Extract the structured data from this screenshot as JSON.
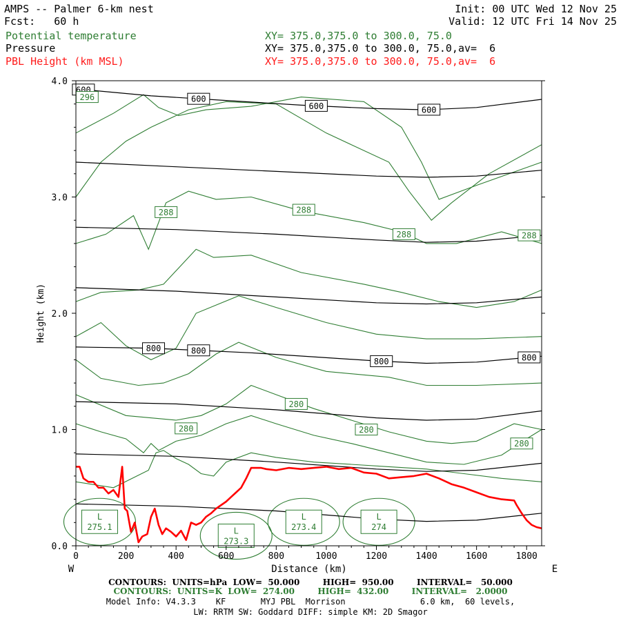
{
  "header": {
    "title": "AMPS -- Palmer 6-km nest",
    "fcst": "Fcst:   60 h",
    "init": "Init: 00 UTC Wed 12 Nov 25",
    "valid": "Valid: 12 UTC Fri 14 Nov 25",
    "field1_name": "Potential temperature",
    "field1_xy": "XY= 375.0,375.0 to 300.0, 75.0",
    "field2_name": "Pressure",
    "field2_xy": "XY= 375.0,375.0 to 300.0, 75.0,av=  6",
    "field3_name": "PBL Height (km MSL)",
    "field3_xy": "XY= 375.0,375.0 to 300.0, 75.0,av=  6"
  },
  "colors": {
    "theta": "#2e7d32",
    "pbl": "#ff0000",
    "pressure": "#000000"
  },
  "chart_data": {
    "type": "line",
    "xlabel": "Distance (km)",
    "ylabel": "Height (km)",
    "xlim": [
      0,
      1860
    ],
    "ylim": [
      0,
      4.0
    ],
    "xticks": [
      0,
      200,
      400,
      600,
      800,
      1000,
      1200,
      1400,
      1600,
      1800
    ],
    "yticks": [
      0.0,
      1.0,
      2.0,
      3.0,
      4.0
    ],
    "ytick_labels": [
      "0.0",
      "1.0",
      "2.0",
      "3.0",
      "4.0"
    ],
    "left_end": "W",
    "right_end": "E",
    "pressure_contours": [
      {
        "x": [
          0,
          300,
          600,
          900,
          1200,
          1400,
          1600,
          1860
        ],
        "y": [
          3.93,
          3.87,
          3.83,
          3.79,
          3.76,
          3.75,
          3.77,
          3.84
        ],
        "label": "600",
        "label_x": [
          30,
          490,
          960,
          1410
        ]
      },
      {
        "x": [
          0,
          400,
          800,
          1200,
          1400,
          1600,
          1860
        ],
        "y": [
          3.3,
          3.26,
          3.22,
          3.18,
          3.17,
          3.18,
          3.23
        ]
      },
      {
        "x": [
          0,
          400,
          800,
          1200,
          1400,
          1600,
          1860
        ],
        "y": [
          2.74,
          2.72,
          2.68,
          2.63,
          2.61,
          2.62,
          2.67
        ],
        "label_x": []
      },
      {
        "x": [
          0,
          400,
          800,
          1200,
          1400,
          1600,
          1860
        ],
        "y": [
          2.22,
          2.19,
          2.14,
          2.09,
          2.08,
          2.09,
          2.14
        ]
      },
      {
        "x": [
          0,
          300,
          700,
          1200,
          1400,
          1600,
          1860
        ],
        "y": [
          1.71,
          1.7,
          1.66,
          1.59,
          1.57,
          1.58,
          1.63
        ],
        "label": "800",
        "label_x": [
          310,
          490,
          1220,
          1810
        ]
      },
      {
        "x": [
          0,
          400,
          800,
          1200,
          1400,
          1600,
          1860
        ],
        "y": [
          1.24,
          1.22,
          1.17,
          1.1,
          1.08,
          1.09,
          1.16
        ]
      },
      {
        "x": [
          0,
          400,
          800,
          1200,
          1400,
          1600,
          1860
        ],
        "y": [
          0.79,
          0.77,
          0.72,
          0.66,
          0.64,
          0.65,
          0.71
        ]
      },
      {
        "x": [
          0,
          400,
          800,
          1200,
          1400,
          1600,
          1860
        ],
        "y": [
          0.36,
          0.34,
          0.3,
          0.23,
          0.21,
          0.22,
          0.28
        ]
      }
    ],
    "theta_contours": [
      {
        "x": [
          0,
          150,
          270,
          330,
          410,
          520,
          700,
          900,
          1150,
          1300,
          1380,
          1450,
          1600,
          1860
        ],
        "y": [
          3.55,
          3.72,
          3.88,
          3.77,
          3.7,
          3.75,
          3.78,
          3.86,
          3.82,
          3.6,
          3.3,
          2.98,
          3.1,
          3.3
        ]
      },
      {
        "x": [
          0,
          100,
          200,
          300,
          450,
          600,
          800,
          1000,
          1100,
          1250,
          1330,
          1420,
          1500,
          1650,
          1860
        ],
        "y": [
          3.0,
          3.3,
          3.48,
          3.6,
          3.75,
          3.82,
          3.8,
          3.55,
          3.45,
          3.3,
          3.05,
          2.8,
          2.95,
          3.2,
          3.45
        ]
      },
      {
        "x": [
          0,
          120,
          230,
          290,
          360,
          450,
          560,
          700,
          900,
          1150,
          1300,
          1400,
          1520,
          1700,
          1860
        ],
        "y": [
          2.6,
          2.68,
          2.84,
          2.55,
          2.95,
          3.05,
          2.98,
          3.0,
          2.88,
          2.78,
          2.7,
          2.6,
          2.6,
          2.7,
          2.6
        ]
      },
      {
        "x": [
          0,
          100,
          250,
          350,
          480,
          550,
          700,
          900,
          1150,
          1300,
          1450,
          1600,
          1750,
          1860
        ],
        "y": [
          2.1,
          2.18,
          2.2,
          2.25,
          2.55,
          2.48,
          2.5,
          2.35,
          2.25,
          2.18,
          2.1,
          2.05,
          2.1,
          2.2
        ]
      },
      {
        "x": [
          0,
          100,
          200,
          300,
          400,
          480,
          650,
          800,
          1000,
          1200,
          1400,
          1600,
          1860
        ],
        "y": [
          1.8,
          1.92,
          1.72,
          1.6,
          1.7,
          2.0,
          2.15,
          2.05,
          1.92,
          1.82,
          1.78,
          1.78,
          1.8
        ]
      },
      {
        "x": [
          0,
          100,
          250,
          350,
          450,
          560,
          650,
          800,
          1000,
          1250,
          1400,
          1600,
          1860
        ],
        "y": [
          1.6,
          1.44,
          1.38,
          1.4,
          1.48,
          1.65,
          1.75,
          1.62,
          1.5,
          1.45,
          1.38,
          1.38,
          1.4
        ]
      },
      {
        "x": [
          0,
          200,
          400,
          500,
          600,
          700,
          800,
          950,
          1100,
          1250,
          1400,
          1500,
          1600,
          1750,
          1860
        ],
        "y": [
          1.3,
          1.12,
          1.08,
          1.12,
          1.22,
          1.38,
          1.3,
          1.18,
          1.08,
          0.98,
          0.9,
          0.88,
          0.9,
          1.05,
          1.0
        ]
      },
      {
        "x": [
          0,
          100,
          200,
          270,
          300,
          330,
          400,
          500,
          600,
          700,
          800,
          950,
          1100,
          1250,
          1400,
          1550,
          1700,
          1800,
          1860
        ],
        "y": [
          1.05,
          0.98,
          0.92,
          0.8,
          0.88,
          0.82,
          0.9,
          0.95,
          1.05,
          1.12,
          1.05,
          0.95,
          0.88,
          0.8,
          0.72,
          0.7,
          0.78,
          0.92,
          1.0
        ]
      },
      {
        "x": [
          0,
          150,
          290,
          320,
          350,
          400,
          450,
          500,
          550,
          600,
          700,
          800,
          950,
          1100,
          1250,
          1400,
          1550,
          1700,
          1860
        ],
        "y": [
          0.55,
          0.5,
          0.65,
          0.8,
          0.82,
          0.75,
          0.7,
          0.62,
          0.6,
          0.72,
          0.8,
          0.76,
          0.72,
          0.7,
          0.68,
          0.66,
          0.62,
          0.58,
          0.55
        ]
      }
    ],
    "theta_labels": [
      {
        "text": "296",
        "x": 45,
        "y": 3.86
      },
      {
        "text": "288",
        "x": 360,
        "y": 2.87
      },
      {
        "text": "288",
        "x": 910,
        "y": 2.89
      },
      {
        "text": "288",
        "x": 1310,
        "y": 2.68
      },
      {
        "text": "288",
        "x": 1810,
        "y": 2.67
      },
      {
        "text": "280",
        "x": 880,
        "y": 1.22
      },
      {
        "text": "280",
        "x": 440,
        "y": 1.01
      },
      {
        "text": "280",
        "x": 1160,
        "y": 1.0
      },
      {
        "text": "280",
        "x": 1780,
        "y": 0.88
      }
    ],
    "minima": [
      {
        "label": "L",
        "value": "275.1",
        "x": 95,
        "y": 0.23
      },
      {
        "label": "L",
        "value": "273.3",
        "x": 640,
        "y": 0.11
      },
      {
        "label": "L",
        "value": "273.4",
        "x": 910,
        "y": 0.23
      },
      {
        "label": "L",
        "value": "274",
        "x": 1210,
        "y": 0.23
      }
    ],
    "pbl_height": {
      "x": [
        0,
        15,
        30,
        50,
        70,
        90,
        110,
        130,
        150,
        170,
        185,
        195,
        205,
        220,
        235,
        250,
        265,
        285,
        300,
        315,
        330,
        345,
        360,
        380,
        400,
        420,
        440,
        460,
        480,
        500,
        520,
        540,
        560,
        580,
        600,
        620,
        640,
        660,
        680,
        700,
        720,
        740,
        760,
        800,
        850,
        900,
        950,
        1000,
        1050,
        1100,
        1150,
        1200,
        1250,
        1300,
        1350,
        1400,
        1450,
        1500,
        1550,
        1600,
        1650,
        1700,
        1750,
        1760,
        1780,
        1800,
        1820,
        1840,
        1860
      ],
      "y": [
        0.68,
        0.68,
        0.58,
        0.55,
        0.55,
        0.5,
        0.5,
        0.45,
        0.48,
        0.42,
        0.68,
        0.32,
        0.3,
        0.12,
        0.2,
        0.03,
        0.08,
        0.1,
        0.25,
        0.32,
        0.18,
        0.1,
        0.15,
        0.12,
        0.08,
        0.13,
        0.05,
        0.2,
        0.18,
        0.2,
        0.25,
        0.28,
        0.32,
        0.35,
        0.38,
        0.42,
        0.46,
        0.5,
        0.58,
        0.67,
        0.67,
        0.67,
        0.66,
        0.65,
        0.67,
        0.66,
        0.67,
        0.68,
        0.66,
        0.67,
        0.63,
        0.62,
        0.58,
        0.59,
        0.6,
        0.62,
        0.58,
        0.53,
        0.5,
        0.46,
        0.42,
        0.4,
        0.39,
        0.35,
        0.28,
        0.22,
        0.18,
        0.16,
        0.15
      ]
    }
  },
  "footer": {
    "line1": "CONTOURS:  UNITS=hPa  LOW=  50.000        HIGH=  950.00        INTERVAL=   50.000",
    "line2": "CONTOURS:  UNITS=K  LOW=  274.00        HIGH=  432.00        INTERVAL=   2.0000",
    "line3": "Model Info: V4.3.3    KF       MYJ PBL  Morrison               6.0 km,  60 levels,",
    "line4": "LW: RRTM SW: Goddard DIFF: simple KM: 2D Smagor"
  }
}
